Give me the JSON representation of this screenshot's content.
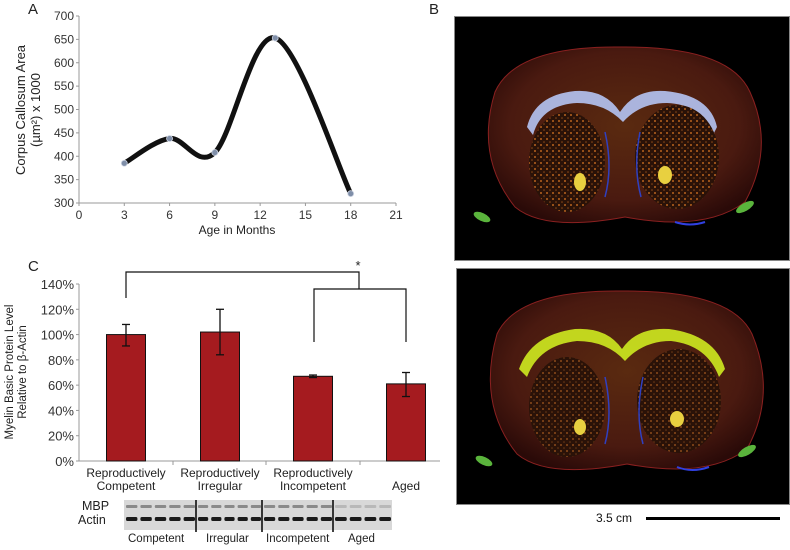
{
  "panels": {
    "a": {
      "letter": "A"
    },
    "b": {
      "letter": "B"
    },
    "c": {
      "letter": "C"
    }
  },
  "chart_data": [
    {
      "id": "A",
      "type": "line",
      "title": "",
      "xlabel": "Age in Months",
      "ylabel": "Corpus Callosum Area (µm²) x 1000",
      "ylabel_line1": "Corpus Callosum Area",
      "ylabel_line2": "(µm²) x 1000",
      "x": [
        3,
        6,
        9,
        13,
        18
      ],
      "values": [
        385,
        438,
        408,
        653,
        320
      ],
      "xlim": [
        0,
        21
      ],
      "ylim": [
        300,
        700
      ],
      "xticks": [
        "0",
        "3",
        "6",
        "9",
        "12",
        "15",
        "18",
        "21"
      ],
      "yticks": [
        "300",
        "350",
        "400",
        "450",
        "500",
        "550",
        "600",
        "650",
        "700"
      ],
      "smooth": true,
      "grid": false,
      "line_color": "#111111",
      "marker_color": "#7f8ea8"
    },
    {
      "id": "C",
      "type": "bar",
      "title": "",
      "xlabel": "",
      "ylabel": "Myelin Basic Protein Level Relative to β-Actin",
      "ylabel_line1": "Myelin Basic Protein Level",
      "ylabel_line2": "Relative to β-Actin",
      "categories": [
        "Reproductively Competent",
        "Reproductively Irregular",
        "Reproductively Incompetent",
        "Aged"
      ],
      "category_lines": [
        [
          "Reproductively",
          "Competent"
        ],
        [
          "Reproductively",
          "Irregular"
        ],
        [
          "Reproductively",
          "Incompetent"
        ],
        [
          "",
          "Aged"
        ]
      ],
      "values": [
        100,
        102,
        67,
        61
      ],
      "error_low": [
        91,
        84,
        66,
        51
      ],
      "error_high": [
        108,
        120,
        68,
        70
      ],
      "ylim": [
        0,
        140
      ],
      "yticks": [
        "0%",
        "20%",
        "40%",
        "60%",
        "80%",
        "100%",
        "120%",
        "140%"
      ],
      "bar_color": "#a51b1f",
      "annotation": {
        "text": "*",
        "comparison": "Reproductively Competent vs. (Reproductively Incompetent, Aged)"
      },
      "grid": false
    }
  ],
  "western_blot": {
    "row_labels": [
      "MBP",
      "Actin"
    ],
    "group_labels": [
      "Competent",
      "Irregular",
      "Incompetent",
      "Aged"
    ],
    "lanes_per_group": [
      5,
      5,
      5,
      4
    ]
  },
  "images": {
    "top": {
      "description": "brain-coronal-section-stain-1",
      "tract_color": "#a9b8f0"
    },
    "bottom": {
      "description": "brain-coronal-section-stain-2",
      "tract_color": "#c8e020"
    }
  },
  "scale_bar": {
    "label": "3.5 cm"
  }
}
